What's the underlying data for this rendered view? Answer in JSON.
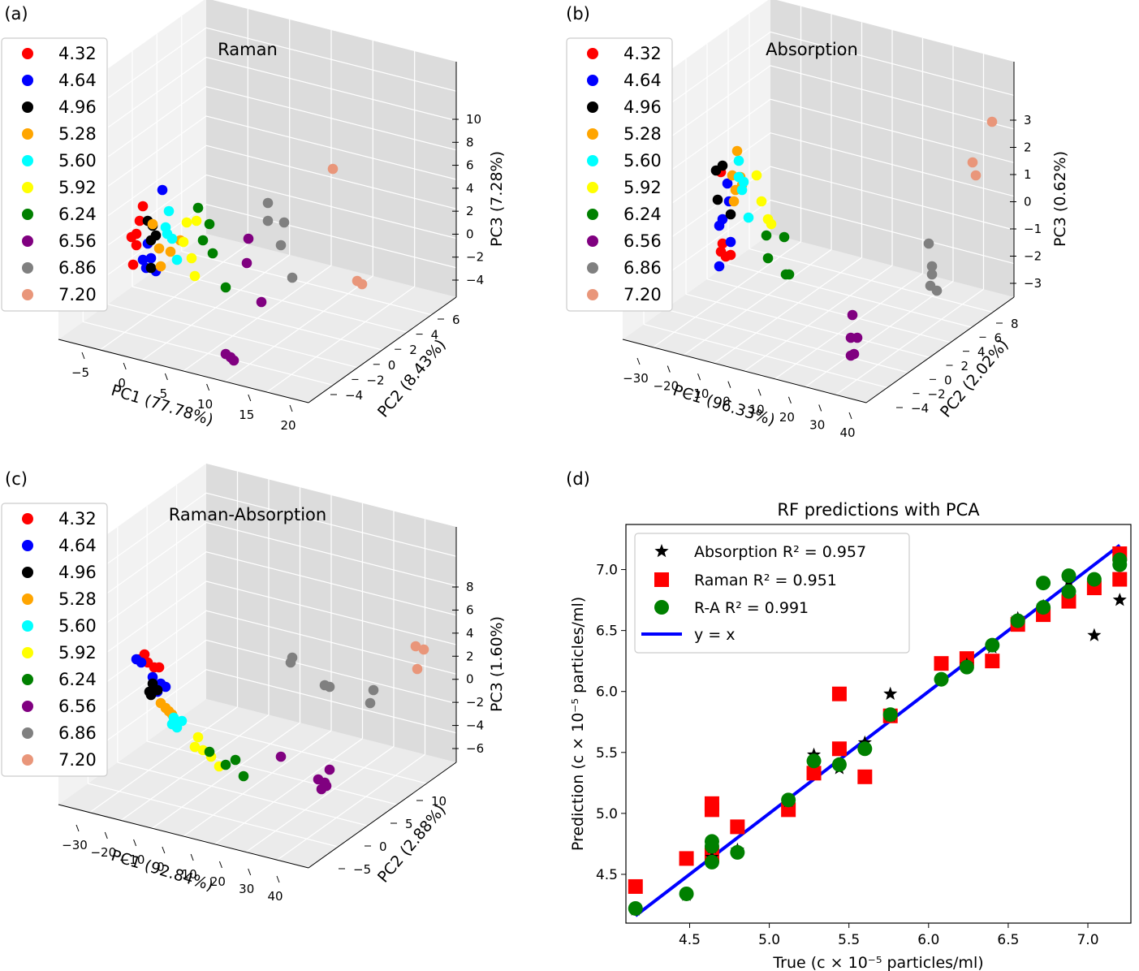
{
  "panel_labels": [
    "(a)",
    "(b)",
    "(c)",
    "(d)"
  ],
  "legend_levels": [
    "4.32",
    "4.64",
    "4.96",
    "5.28",
    "5.60",
    "5.92",
    "6.24",
    "6.56",
    "6.86",
    "7.20"
  ],
  "legend_colors": [
    "#ff0000",
    "#0000ff",
    "#000000",
    "#ffa500",
    "#00ffff",
    "#ffff00",
    "#008000",
    "#800080",
    "#808080",
    "#e9967a"
  ],
  "chart_data": [
    {
      "type": "scatter",
      "projection": "3d",
      "title": "Raman",
      "xlabel": "PC1 (77.78%)",
      "ylabel": "PC2 (8.43%)",
      "zlabel": "PC3 (7.28%)",
      "xticks": [
        "−5",
        "0",
        "5",
        "10",
        "15",
        "20"
      ],
      "yticks": [
        "−4",
        "−2",
        "0",
        "2",
        "4",
        "6"
      ],
      "zticks": [
        "−4",
        "−2",
        "0",
        "2",
        "4",
        "6",
        "8",
        "10"
      ],
      "legend": "top-left",
      "grid": true
    },
    {
      "type": "scatter",
      "projection": "3d",
      "title": "Absorption",
      "xlabel": "PC1 (96.33%)",
      "ylabel": "PC2 (2.02%)",
      "zlabel": "PC3 (0.62%)",
      "xticks": [
        "−30",
        "−20",
        "−10",
        "0",
        "10",
        "20",
        "30",
        "40"
      ],
      "yticks": [
        "−4",
        "−2",
        "0",
        "2",
        "4",
        "6",
        "8"
      ],
      "zticks": [
        "−3",
        "−2",
        "−1",
        "0",
        "1",
        "2",
        "3"
      ],
      "legend": "top-left",
      "grid": true
    },
    {
      "type": "scatter",
      "projection": "3d",
      "title": "Raman-Absorption",
      "xlabel": "PC1 (92.84%)",
      "ylabel": "PC2 (2.88%)",
      "zlabel": "PC3 (1.60%)",
      "xticks": [
        "−30",
        "−20",
        "−10",
        "0",
        "10",
        "20",
        "30",
        "40"
      ],
      "yticks": [
        "−5",
        "0",
        "5",
        "10"
      ],
      "zticks": [
        "−6",
        "−4",
        "−2",
        "0",
        "2",
        "4",
        "6",
        "8"
      ],
      "legend": "top-left",
      "grid": true
    },
    {
      "type": "scatter",
      "title": "RF predictions with PCA",
      "xlabel": "True (c × 10⁻⁵ particles/ml)",
      "ylabel": "Prediction (c × 10⁻⁵ particles/ml)",
      "xlim": [
        4.1,
        7.27
      ],
      "ylim": [
        4.1,
        7.37
      ],
      "xticks": [
        "4.5",
        "5.0",
        "5.5",
        "6.0",
        "6.5",
        "7.0"
      ],
      "yticks": [
        "4.5",
        "5.0",
        "5.5",
        "6.0",
        "6.5",
        "7.0"
      ],
      "legend": "top-left",
      "series": [
        {
          "name": "Absorption R² = 0.957",
          "marker": "star",
          "color": "#000000",
          "points": [
            [
              4.16,
              4.21
            ],
            [
              4.48,
              4.33
            ],
            [
              4.64,
              4.64
            ],
            [
              4.64,
              4.72
            ],
            [
              4.8,
              4.7
            ],
            [
              5.12,
              5.1
            ],
            [
              5.28,
              5.48
            ],
            [
              5.44,
              5.37
            ],
            [
              5.6,
              5.58
            ],
            [
              5.76,
              5.98
            ],
            [
              5.76,
              5.8
            ],
            [
              6.08,
              6.1
            ],
            [
              6.24,
              6.22
            ],
            [
              6.4,
              6.36
            ],
            [
              6.56,
              6.6
            ],
            [
              6.72,
              6.7
            ],
            [
              6.88,
              6.9
            ],
            [
              7.04,
              6.46
            ],
            [
              7.2,
              6.75
            ],
            [
              7.2,
              7.05
            ]
          ]
        },
        {
          "name": "Raman R² = 0.951",
          "marker": "square",
          "color": "#ff0000",
          "points": [
            [
              4.16,
              4.4
            ],
            [
              4.48,
              4.63
            ],
            [
              4.64,
              4.66
            ],
            [
              4.64,
              5.03
            ],
            [
              4.64,
              5.08
            ],
            [
              4.8,
              4.89
            ],
            [
              5.12,
              5.03
            ],
            [
              5.28,
              5.33
            ],
            [
              5.44,
              5.53
            ],
            [
              5.44,
              5.98
            ],
            [
              5.6,
              5.3
            ],
            [
              5.76,
              5.8
            ],
            [
              6.08,
              6.23
            ],
            [
              6.24,
              6.27
            ],
            [
              6.4,
              6.25
            ],
            [
              6.56,
              6.55
            ],
            [
              6.72,
              6.63
            ],
            [
              6.88,
              6.74
            ],
            [
              7.04,
              6.85
            ],
            [
              7.2,
              6.92
            ],
            [
              7.2,
              7.13
            ]
          ]
        },
        {
          "name": "R-A R² = 0.991",
          "marker": "circle",
          "color": "#008000",
          "points": [
            [
              4.16,
              4.22
            ],
            [
              4.48,
              4.34
            ],
            [
              4.64,
              4.6
            ],
            [
              4.64,
              4.73
            ],
            [
              4.64,
              4.77
            ],
            [
              4.8,
              4.68
            ],
            [
              5.12,
              5.11
            ],
            [
              5.28,
              5.43
            ],
            [
              5.44,
              5.4
            ],
            [
              5.6,
              5.53
            ],
            [
              5.76,
              5.81
            ],
            [
              6.08,
              6.1
            ],
            [
              6.24,
              6.2
            ],
            [
              6.4,
              6.38
            ],
            [
              6.56,
              6.58
            ],
            [
              6.72,
              6.89
            ],
            [
              6.72,
              6.69
            ],
            [
              6.88,
              6.82
            ],
            [
              6.88,
              6.95
            ],
            [
              7.04,
              6.92
            ],
            [
              7.2,
              7.04
            ],
            [
              7.2,
              7.08
            ]
          ]
        },
        {
          "name": "y = x",
          "marker": "line",
          "color": "#0000ff",
          "points": [
            [
              4.16,
              4.16
            ],
            [
              7.2,
              7.2
            ]
          ]
        }
      ]
    }
  ]
}
